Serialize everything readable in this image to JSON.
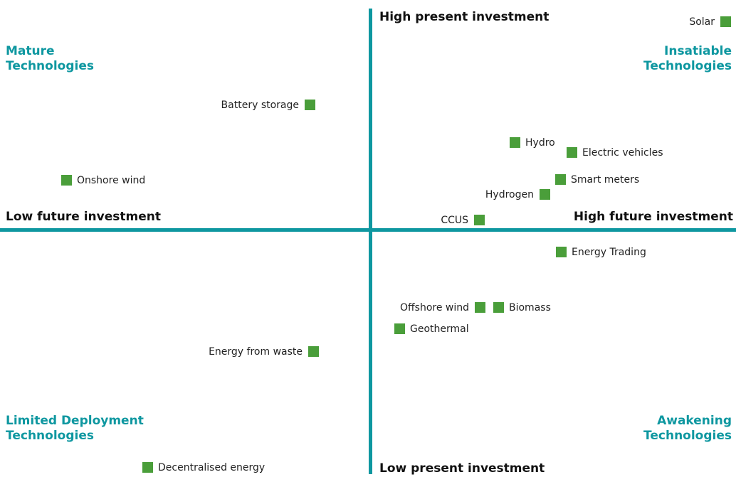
{
  "quadrants": {
    "top_left": [
      "Mature",
      "Technologies"
    ],
    "top_right": [
      "Insatiable",
      "Technologies"
    ],
    "bottom_left": [
      "Limited Deployment",
      "Technologies"
    ],
    "bottom_right": [
      "Awakening",
      "Technologies"
    ]
  },
  "axes": {
    "top": "High present investment",
    "bottom": "Low present investment",
    "left": "Low future investment",
    "right": "High future investment"
  },
  "nodes": [
    {
      "label": "Solar"
    },
    {
      "label": "Battery storage"
    },
    {
      "label": "Hydro"
    },
    {
      "label": "Electric vehicles"
    },
    {
      "label": "Onshore wind"
    },
    {
      "label": "Smart meters"
    },
    {
      "label": "Hydrogen"
    },
    {
      "label": "CCUS"
    },
    {
      "label": "Energy Trading"
    },
    {
      "label": "Offshore wind"
    },
    {
      "label": "Biomass"
    },
    {
      "label": "Geothermal"
    },
    {
      "label": "Energy from waste"
    },
    {
      "label": "Decentralised energy"
    }
  ]
}
